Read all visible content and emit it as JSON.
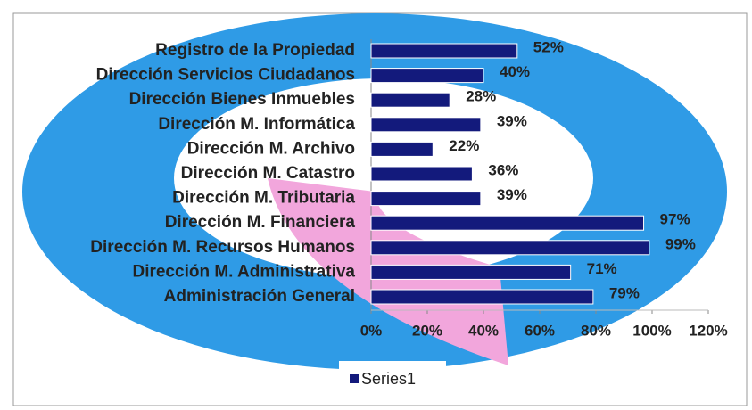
{
  "chart_data": {
    "type": "bar",
    "orientation": "horizontal",
    "categories": [
      "Registro de la Propiedad",
      "Dirección Servicios Ciudadanos",
      "Dirección Bienes Inmuebles",
      "Dirección M. Informática",
      "Dirección M. Archivo",
      "Dirección M. Catastro",
      "Dirección M. Tributaria",
      "Dirección M. Financiera",
      "Dirección M. Recursos Humanos",
      "Dirección M. Administrativa",
      "Administración General"
    ],
    "series": [
      {
        "name": "Series1",
        "color": "#131a7c",
        "values": [
          52,
          40,
          28,
          39,
          22,
          36,
          39,
          97,
          99,
          71,
          79
        ],
        "value_labels": [
          "52%",
          "40%",
          "28%",
          "39%",
          "22%",
          "36%",
          "39%",
          "97%",
          "99%",
          "71%",
          "79%"
        ]
      }
    ],
    "xlim": [
      0,
      120
    ],
    "xticks": [
      {
        "value": 0,
        "label": "0%"
      },
      {
        "value": 20,
        "label": "20%"
      },
      {
        "value": 40,
        "label": "40%"
      },
      {
        "value": 60,
        "label": "60%"
      },
      {
        "value": 80,
        "label": "80%"
      },
      {
        "value": 100,
        "label": "100%"
      },
      {
        "value": 120,
        "label": "120%"
      }
    ],
    "legend": "bottom"
  }
}
